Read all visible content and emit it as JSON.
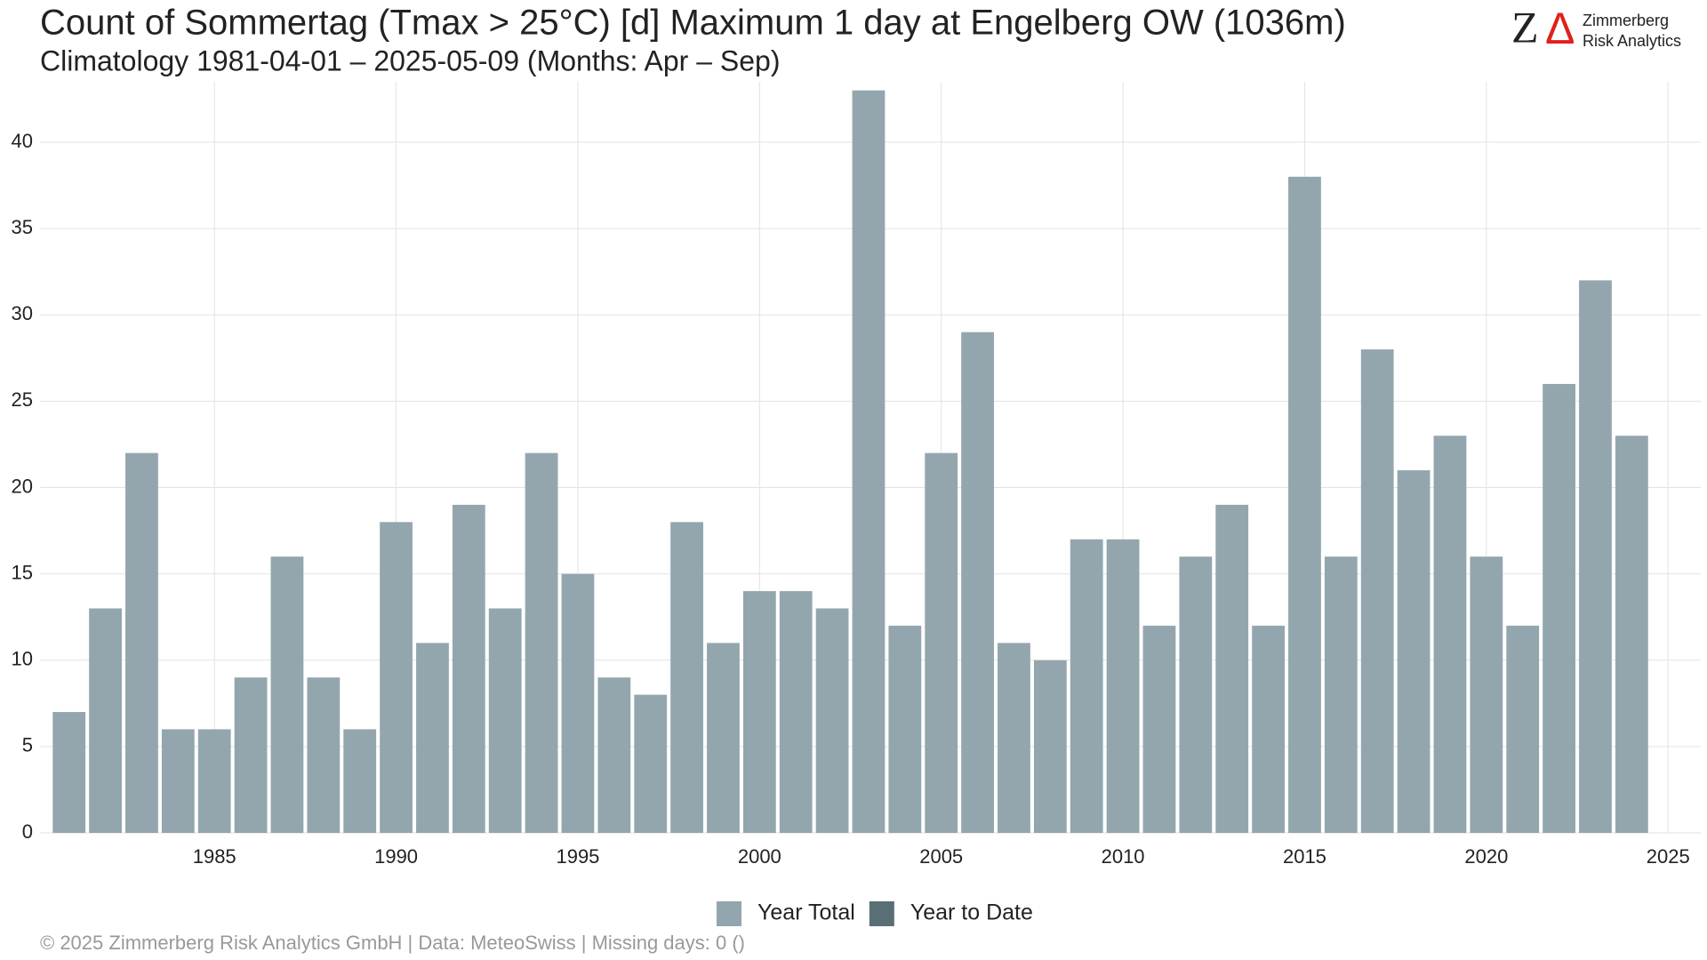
{
  "chart_data": {
    "type": "bar",
    "title": "Count of Sommertag (Tmax > 25°C) [d] Maximum 1 day at Engelberg  OW (1036m)",
    "subtitle": "Climatology 1981-04-01 – 2025-05-09 (Months: Apr – Sep)",
    "footer": "©  2025 Zimmerberg Risk Analytics GmbH | Data: MeteoSwiss | Missing days: 0 ()",
    "logo": {
      "mark": "Z",
      "mark2": "Δ",
      "line1": "Zimmerberg",
      "line2": "Risk Analytics"
    },
    "x": [
      1981,
      1982,
      1983,
      1984,
      1985,
      1986,
      1987,
      1988,
      1989,
      1990,
      1991,
      1992,
      1993,
      1994,
      1995,
      1996,
      1997,
      1998,
      1999,
      2000,
      2001,
      2002,
      2003,
      2004,
      2005,
      2006,
      2007,
      2008,
      2009,
      2010,
      2011,
      2012,
      2013,
      2014,
      2015,
      2016,
      2017,
      2018,
      2019,
      2020,
      2021,
      2022,
      2023,
      2024
    ],
    "series": [
      {
        "name": "Year Total",
        "color": "#93a6ad",
        "values": [
          7,
          13,
          22,
          6,
          6,
          9,
          16,
          9,
          6,
          18,
          11,
          19,
          13,
          22,
          15,
          9,
          8,
          18,
          11,
          14,
          14,
          13,
          43,
          12,
          22,
          29,
          11,
          10,
          17,
          17,
          12,
          16,
          19,
          12,
          38,
          16,
          28,
          21,
          23,
          16,
          12,
          26,
          32,
          23
        ]
      },
      {
        "name": "Year to Date",
        "color": "#5a6e75",
        "values": [
          null,
          null,
          null,
          null,
          null,
          null,
          null,
          null,
          null,
          null,
          null,
          null,
          null,
          null,
          null,
          null,
          null,
          null,
          null,
          null,
          null,
          null,
          null,
          null,
          null,
          null,
          null,
          null,
          null,
          null,
          null,
          null,
          null,
          null,
          null,
          null,
          null,
          null,
          null,
          null,
          null,
          null,
          null,
          null
        ]
      }
    ],
    "xlim": [
      1980.2,
      2025.9
    ],
    "xticks": [
      1985,
      1990,
      1995,
      2000,
      2005,
      2010,
      2015,
      2020,
      2025
    ],
    "ylim": [
      0,
      43.5
    ],
    "yticks": [
      0,
      5,
      10,
      15,
      20,
      25,
      30,
      35,
      40
    ],
    "grid": true,
    "legend": "bottom"
  }
}
